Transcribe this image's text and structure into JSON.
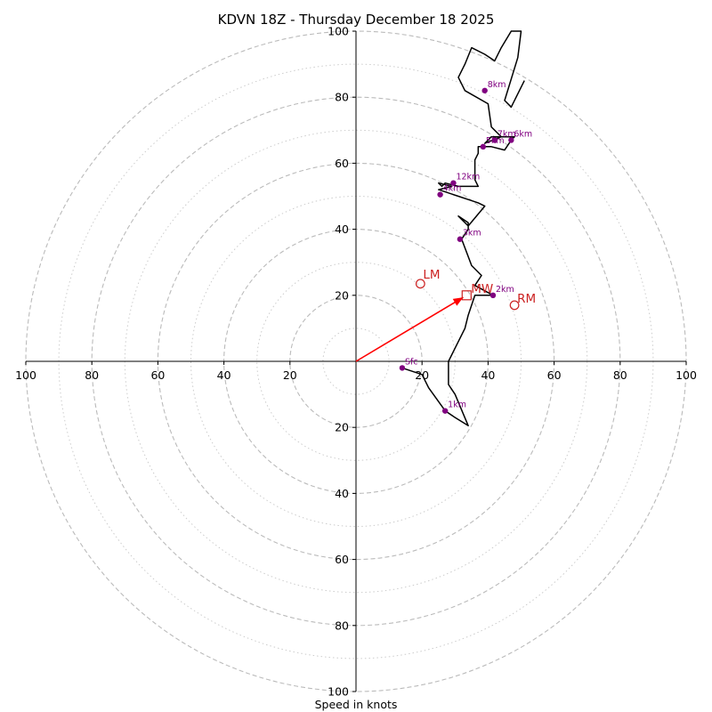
{
  "chart_data": {
    "type": "hodograph",
    "title": "KDVN 18Z - Thursday December 18 2025",
    "xlabel": "Speed in knots",
    "ring_max": 100,
    "major_rings": [
      20,
      40,
      60,
      80,
      100
    ],
    "minor_rings": [
      10,
      30,
      50,
      70,
      90
    ],
    "x_ticks": [
      {
        "value": -100,
        "label": "100"
      },
      {
        "value": -80,
        "label": "80"
      },
      {
        "value": -60,
        "label": "60"
      },
      {
        "value": -40,
        "label": "40"
      },
      {
        "value": -20,
        "label": "20"
      },
      {
        "value": 20,
        "label": "20"
      },
      {
        "value": 40,
        "label": "40"
      },
      {
        "value": 60,
        "label": "60"
      },
      {
        "value": 80,
        "label": "80"
      },
      {
        "value": 100,
        "label": "100"
      }
    ],
    "y_ticks": [
      {
        "value": 100,
        "label": "100"
      },
      {
        "value": 80,
        "label": "80"
      },
      {
        "value": 60,
        "label": "60"
      },
      {
        "value": 40,
        "label": "40"
      },
      {
        "value": 20,
        "label": "20"
      },
      {
        "value": -20,
        "label": "20"
      },
      {
        "value": -40,
        "label": "40"
      },
      {
        "value": -60,
        "label": "60"
      },
      {
        "value": -80,
        "label": "80"
      },
      {
        "value": -100,
        "label": "100"
      }
    ],
    "trace": [
      [
        14,
        -2
      ],
      [
        20,
        -4
      ],
      [
        22,
        -8
      ],
      [
        27,
        -15
      ],
      [
        30,
        -17
      ],
      [
        34,
        -19.5
      ],
      [
        30,
        -10
      ],
      [
        28,
        -7
      ],
      [
        28,
        -4
      ],
      [
        28,
        0
      ],
      [
        30,
        4
      ],
      [
        33,
        10
      ],
      [
        34,
        14
      ],
      [
        36,
        20
      ],
      [
        41.5,
        20
      ],
      [
        36,
        23
      ],
      [
        38,
        26
      ],
      [
        35,
        29
      ],
      [
        32,
        37
      ],
      [
        34,
        40
      ],
      [
        34,
        42
      ],
      [
        31,
        44
      ],
      [
        34,
        41
      ],
      [
        39,
        47
      ],
      [
        37,
        48
      ],
      [
        34,
        49
      ],
      [
        31,
        50
      ],
      [
        25,
        52
      ],
      [
        29,
        53
      ],
      [
        25,
        54
      ],
      [
        26,
        53
      ],
      [
        27,
        54
      ],
      [
        31,
        53
      ],
      [
        37,
        53
      ],
      [
        36,
        55
      ],
      [
        36,
        61
      ],
      [
        37,
        63
      ],
      [
        37,
        65
      ],
      [
        41,
        65
      ],
      [
        45,
        64
      ],
      [
        47,
        67
      ],
      [
        48,
        68
      ],
      [
        41,
        68
      ],
      [
        39,
        66
      ],
      [
        41.5,
        67
      ],
      [
        44,
        68
      ],
      [
        41,
        71
      ],
      [
        40,
        78
      ],
      [
        33,
        82
      ],
      [
        31,
        86
      ],
      [
        33,
        90
      ],
      [
        35,
        95
      ],
      [
        39,
        93
      ],
      [
        42,
        91
      ],
      [
        44,
        95
      ],
      [
        47,
        100
      ],
      [
        50,
        100
      ],
      [
        49,
        92
      ],
      [
        45,
        79
      ],
      [
        47,
        77
      ],
      [
        51,
        85
      ]
    ],
    "height_markers": [
      {
        "label": "Sfc",
        "u": 14,
        "v": -2
      },
      {
        "label": "1km",
        "u": 27,
        "v": -15
      },
      {
        "label": "2km",
        "u": 41.5,
        "v": 20
      },
      {
        "label": "3km",
        "u": 31.5,
        "v": 37
      },
      {
        "label": "4km",
        "u": 25.5,
        "v": 50.5
      },
      {
        "label": "5km",
        "u": 38.5,
        "v": 65
      },
      {
        "label": "6km",
        "u": 47,
        "v": 67
      },
      {
        "label": "7km",
        "u": 42,
        "v": 67
      },
      {
        "label": "8km",
        "u": 39,
        "v": 82
      },
      {
        "label": "12km",
        "u": 29.5,
        "v": 54
      }
    ],
    "storm_motion": {
      "mean_wind": {
        "label": "MW",
        "u": 33.5,
        "v": 20
      },
      "left_mover": {
        "label": "LM",
        "u": 19.5,
        "v": 23.5
      },
      "right_mover": {
        "label": "RM",
        "u": 48,
        "v": 17
      },
      "vector_color": "#ff0000"
    },
    "colors": {
      "trace": "#000000",
      "markers": "#800080",
      "storm": "#cc2222",
      "grid": "#bbbbbb"
    }
  }
}
